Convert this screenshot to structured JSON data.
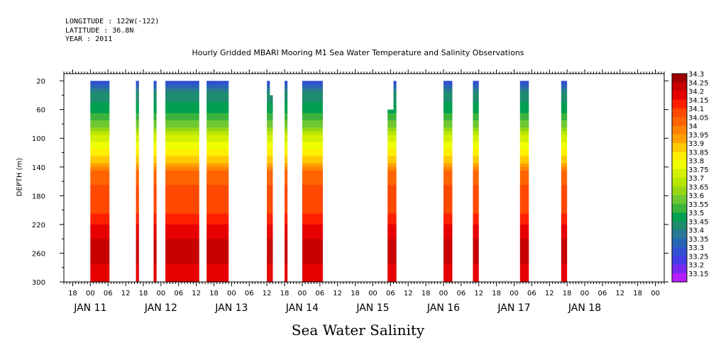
{
  "header": {
    "longitude": "LONGITUDE : 122W(-122)",
    "latitude": "LATITUDE : 36.8N",
    "year": "YEAR : 2011"
  },
  "title": "Hourly Gridded MBARI Mooring M1 Sea Water Temperature and Salinity Observations",
  "bottom_title": "Sea Water Salinity",
  "chart_data": {
    "type": "heatmap",
    "title": "Hourly Gridded MBARI Mooring M1 Sea Water Temperature and Salinity Observations",
    "xlabel": "",
    "ylabel": "DEPTH (m)",
    "ylim": [
      300,
      10
    ],
    "y_inverted": true,
    "y_ticks": [
      20,
      60,
      100,
      140,
      180,
      220,
      260,
      300
    ],
    "x_hour_range": [
      -9,
      195
    ],
    "x_hour_ticks": [
      {
        "h": -6,
        "label": "18"
      },
      {
        "h": 0,
        "label": "00"
      },
      {
        "h": 6,
        "label": "06"
      },
      {
        "h": 12,
        "label": "12"
      },
      {
        "h": 18,
        "label": "18"
      },
      {
        "h": 24,
        "label": "00"
      },
      {
        "h": 30,
        "label": "06"
      },
      {
        "h": 36,
        "label": "12"
      },
      {
        "h": 42,
        "label": "18"
      },
      {
        "h": 48,
        "label": "00"
      },
      {
        "h": 54,
        "label": "06"
      },
      {
        "h": 60,
        "label": "12"
      },
      {
        "h": 66,
        "label": "18"
      },
      {
        "h": 72,
        "label": "00"
      },
      {
        "h": 78,
        "label": "06"
      },
      {
        "h": 84,
        "label": "12"
      },
      {
        "h": 90,
        "label": "18"
      },
      {
        "h": 96,
        "label": "00"
      },
      {
        "h": 102,
        "label": "06"
      },
      {
        "h": 108,
        "label": "12"
      },
      {
        "h": 114,
        "label": "18"
      },
      {
        "h": 120,
        "label": "00"
      },
      {
        "h": 126,
        "label": "06"
      },
      {
        "h": 132,
        "label": "12"
      },
      {
        "h": 138,
        "label": "18"
      },
      {
        "h": 144,
        "label": "00"
      },
      {
        "h": 150,
        "label": "06"
      },
      {
        "h": 156,
        "label": "12"
      },
      {
        "h": 162,
        "label": "18"
      },
      {
        "h": 168,
        "label": "00"
      },
      {
        "h": 174,
        "label": "06"
      },
      {
        "h": 180,
        "label": "12"
      },
      {
        "h": 186,
        "label": "18"
      },
      {
        "h": 192,
        "label": "00"
      }
    ],
    "day_labels": [
      {
        "h": 0,
        "label": "JAN 11"
      },
      {
        "h": 24,
        "label": "JAN 12"
      },
      {
        "h": 48,
        "label": "JAN 13"
      },
      {
        "h": 72,
        "label": "JAN 14"
      },
      {
        "h": 96,
        "label": "JAN 15"
      },
      {
        "h": 120,
        "label": "JAN 16"
      },
      {
        "h": 144,
        "label": "JAN 17"
      },
      {
        "h": 168,
        "label": "JAN 18"
      }
    ],
    "levels": [
      {
        "value": "34.3",
        "color": "#a00000"
      },
      {
        "value": "34.25",
        "color": "#c80000"
      },
      {
        "value": "34.2",
        "color": "#e60000"
      },
      {
        "value": "34.15",
        "color": "#ff2000"
      },
      {
        "value": "34.1",
        "color": "#ff4800"
      },
      {
        "value": "34.05",
        "color": "#ff6400"
      },
      {
        "value": "34",
        "color": "#ff8200"
      },
      {
        "value": "33.95",
        "color": "#ffa000"
      },
      {
        "value": "33.9",
        "color": "#ffc800"
      },
      {
        "value": "33.85",
        "color": "#ffee00"
      },
      {
        "value": "33.8",
        "color": "#f0ff00"
      },
      {
        "value": "33.75",
        "color": "#d2f000"
      },
      {
        "value": "33.7",
        "color": "#b4e600"
      },
      {
        "value": "33.65",
        "color": "#96d714"
      },
      {
        "value": "33.6",
        "color": "#6ec832"
      },
      {
        "value": "33.55",
        "color": "#3cb43c"
      },
      {
        "value": "33.5",
        "color": "#00a050"
      },
      {
        "value": "33.45",
        "color": "#1e8c6e"
      },
      {
        "value": "33.4",
        "color": "#287896"
      },
      {
        "value": "33.35",
        "color": "#2864b4"
      },
      {
        "value": "33.3",
        "color": "#3250d2"
      },
      {
        "value": "33.25",
        "color": "#463ce6"
      },
      {
        "value": "33.2",
        "color": "#7828f0"
      },
      {
        "value": "33.15",
        "color": "#b41eff"
      }
    ],
    "data_segments": [
      {
        "start_h": 0,
        "end_h": 6.5,
        "top_depth": 20
      },
      {
        "start_h": 15.5,
        "end_h": 16.5,
        "top_depth": 20
      },
      {
        "start_h": 21.5,
        "end_h": 22.5,
        "top_depth": 20
      },
      {
        "start_h": 25.5,
        "end_h": 37,
        "top_depth": 20
      },
      {
        "start_h": 39.5,
        "end_h": 47,
        "top_depth": 20
      },
      {
        "start_h": 60,
        "end_h": 61,
        "top_depth": 20
      },
      {
        "start_h": 61,
        "end_h": 62,
        "top_depth": 40
      },
      {
        "start_h": 66,
        "end_h": 67,
        "top_depth": 20
      },
      {
        "start_h": 72,
        "end_h": 79,
        "top_depth": 20
      },
      {
        "start_h": 101,
        "end_h": 103,
        "top_depth": 60
      },
      {
        "start_h": 103,
        "end_h": 104,
        "top_depth": 20
      },
      {
        "start_h": 120,
        "end_h": 123,
        "top_depth": 20
      },
      {
        "start_h": 130,
        "end_h": 132,
        "top_depth": 20
      },
      {
        "start_h": 146,
        "end_h": 149,
        "top_depth": 20
      },
      {
        "start_h": 160,
        "end_h": 162,
        "top_depth": 20
      }
    ],
    "salinity_profile": [
      {
        "depth": 20,
        "value": 33.3
      },
      {
        "depth": 40,
        "value": 33.45
      },
      {
        "depth": 60,
        "value": 33.5
      },
      {
        "depth": 80,
        "value": 33.6
      },
      {
        "depth": 100,
        "value": 33.75
      },
      {
        "depth": 120,
        "value": 33.85
      },
      {
        "depth": 140,
        "value": 33.95
      },
      {
        "depth": 150,
        "value": 34.05
      },
      {
        "depth": 180,
        "value": 34.1
      },
      {
        "depth": 200,
        "value": 34.1
      },
      {
        "depth": 210,
        "value": 34.15
      },
      {
        "depth": 230,
        "value": 34.2
      },
      {
        "depth": 250,
        "value": 34.25
      },
      {
        "depth": 270,
        "value": 34.25
      },
      {
        "depth": 280,
        "value": 34.2
      },
      {
        "depth": 300,
        "value": 34.2
      }
    ]
  }
}
